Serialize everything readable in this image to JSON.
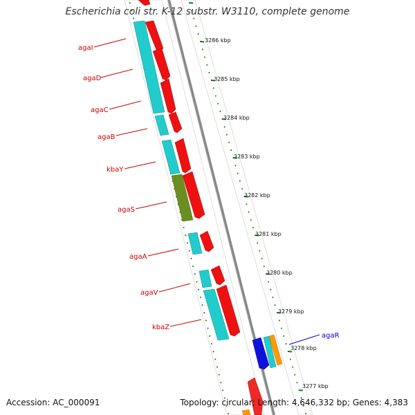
{
  "title": "Escherichia coli str. K-12 substr. W3110, complete genome",
  "footer": {
    "accession": "Accession: AC_000091",
    "summary": "Topology: circular; Length: 4,646,332 bp; Genes: 4,383"
  },
  "colors": {
    "forward_cds": "#ee1111",
    "reverse_cds": "#22cccc",
    "reverse_cds_alt": "#6b8e23",
    "regulator": "#1111dd",
    "orange": "#ff9900",
    "label_reverse": "#cc0000",
    "label_regulator": "#0000cc",
    "tick": "#117711",
    "backbone": "#888888"
  },
  "scale_ticks": [
    "3286 kbp",
    "3285 kbp",
    "3284 kbp",
    "3283 kbp",
    "3282 kbp",
    "3281 kbp",
    "3280 kbp",
    "3279 kbp",
    "3278 kbp",
    "3277 kbp"
  ],
  "gene_labels": [
    {
      "name": "agaI",
      "strand": "reverse"
    },
    {
      "name": "agaD",
      "strand": "reverse"
    },
    {
      "name": "agaC",
      "strand": "reverse"
    },
    {
      "name": "agaB",
      "strand": "reverse"
    },
    {
      "name": "kbaY",
      "strand": "reverse"
    },
    {
      "name": "agaS",
      "strand": "reverse"
    },
    {
      "name": "agaA",
      "strand": "reverse"
    },
    {
      "name": "agaV",
      "strand": "reverse"
    },
    {
      "name": "kbaZ",
      "strand": "reverse"
    },
    {
      "name": "agaR",
      "strand": "forward"
    }
  ]
}
